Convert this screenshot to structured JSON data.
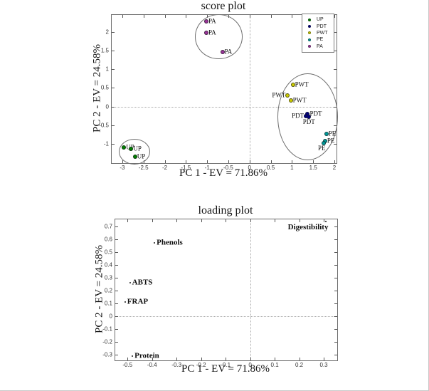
{
  "figure": {
    "background": "#ffffff",
    "frame_color": "#6e6e6e",
    "zero_line_style": "dotted"
  },
  "chart_data": [
    {
      "type": "scatter",
      "title": "score plot",
      "xlabel": "PC 1 - EV = 71.86%",
      "ylabel": "PC 2 - EV = 24.58%",
      "xlim": [
        -3.25,
        2.05
      ],
      "ylim": [
        -1.52,
        2.46
      ],
      "xticks": [
        -3,
        -2.5,
        -2,
        -1.5,
        -1,
        -0.5,
        0,
        0.5,
        1,
        1.5,
        2
      ],
      "yticks": [
        -1,
        -0.5,
        0,
        0.5,
        1,
        1.5,
        2
      ],
      "grid": false,
      "zero_lines": true,
      "legend": {
        "position": "top-right",
        "entries": [
          {
            "label": "UP",
            "color": "#008000"
          },
          {
            "label": "PDT",
            "color": "#000080"
          },
          {
            "label": "PWT",
            "color": "#cccc00"
          },
          {
            "label": "PE",
            "color": "#009999"
          },
          {
            "label": "PA",
            "color": "#993399"
          }
        ]
      },
      "series": [
        {
          "name": "UP",
          "color": "#008000",
          "marker": "circle",
          "points": [
            {
              "x": -2.96,
              "y": -1.1,
              "label": "UP",
              "label_pos": "right"
            },
            {
              "x": -2.79,
              "y": -1.14,
              "label": "UP",
              "label_pos": "right"
            },
            {
              "x": -2.7,
              "y": -1.35,
              "label": "UP",
              "label_pos": "right"
            }
          ]
        },
        {
          "name": "PDT",
          "color": "#000080",
          "marker": "circle",
          "points": [
            {
              "x": 1.37,
              "y": -0.2,
              "label": "PDT",
              "label_pos": "right"
            },
            {
              "x": 1.33,
              "y": -0.26,
              "label": "PDT",
              "label_pos": "left"
            },
            {
              "x": 1.4,
              "y": -0.28,
              "label": "PDT",
              "label_pos": "below"
            }
          ]
        },
        {
          "name": "PWT",
          "color": "#cccc00",
          "marker": "circle",
          "points": [
            {
              "x": 1.02,
              "y": 0.58,
              "label": "PWT",
              "label_pos": "right"
            },
            {
              "x": 0.9,
              "y": 0.29,
              "label": "PWT",
              "label_pos": "left"
            },
            {
              "x": 0.97,
              "y": 0.16,
              "label": "PWT",
              "label_pos": "right"
            }
          ]
        },
        {
          "name": "PE",
          "color": "#009999",
          "marker": "circle",
          "points": [
            {
              "x": 1.81,
              "y": -0.73,
              "label": "PE",
              "label_pos": "right"
            },
            {
              "x": 1.78,
              "y": -0.92,
              "label": "PE",
              "label_pos": "right"
            },
            {
              "x": 1.74,
              "y": -0.99,
              "label": "PE",
              "label_pos": "below-left"
            }
          ]
        },
        {
          "name": "PA",
          "color": "#993399",
          "marker": "circle",
          "points": [
            {
              "x": -1.02,
              "y": 2.28,
              "label": "PA",
              "label_pos": "right"
            },
            {
              "x": -1.02,
              "y": 1.99,
              "label": "PA",
              "label_pos": "right"
            },
            {
              "x": -0.64,
              "y": 1.47,
              "label": "PA",
              "label_pos": "right"
            }
          ]
        }
      ],
      "ellipses": [
        {
          "cx": -0.74,
          "cy": 1.9,
          "rx": 0.54,
          "ry": 0.58
        },
        {
          "cx": 1.35,
          "cy": -0.25,
          "rx": 0.7,
          "ry": 1.15
        },
        {
          "cx": -2.73,
          "cy": -1.19,
          "rx": 0.36,
          "ry": 0.33
        }
      ]
    },
    {
      "type": "scatter",
      "title": "loading plot",
      "xlabel": "PC 1 - EV = 71.86%",
      "ylabel": "PC 2 - EV = 24.58%",
      "xlim": [
        -0.55,
        0.355
      ],
      "ylim": [
        -0.345,
        0.755
      ],
      "xticks": [
        -0.5,
        -0.4,
        -0.3,
        -0.2,
        -0.1,
        0,
        0.1,
        0.2,
        0.3
      ],
      "yticks": [
        -0.3,
        -0.2,
        -0.1,
        0,
        0.1,
        0.2,
        0.3,
        0.4,
        0.5,
        0.6,
        0.7
      ],
      "grid": false,
      "zero_lines": true,
      "series": [
        {
          "name": "loadings",
          "color": "#1c1c1c",
          "marker": "dot-small",
          "points": [
            {
              "x": -0.39,
              "y": 0.57,
              "label": "Phenols",
              "label_pos": "right"
            },
            {
              "x": -0.49,
              "y": 0.26,
              "label": "ABTS",
              "label_pos": "right"
            },
            {
              "x": -0.51,
              "y": 0.11,
              "label": "FRAP",
              "label_pos": "right"
            },
            {
              "x": -0.48,
              "y": -0.31,
              "label": "Protein",
              "label_pos": "right"
            },
            {
              "x": 0.31,
              "y": 0.74,
              "label": "Digestibility",
              "label_pos": "below-left"
            }
          ]
        }
      ],
      "ellipses": []
    }
  ]
}
